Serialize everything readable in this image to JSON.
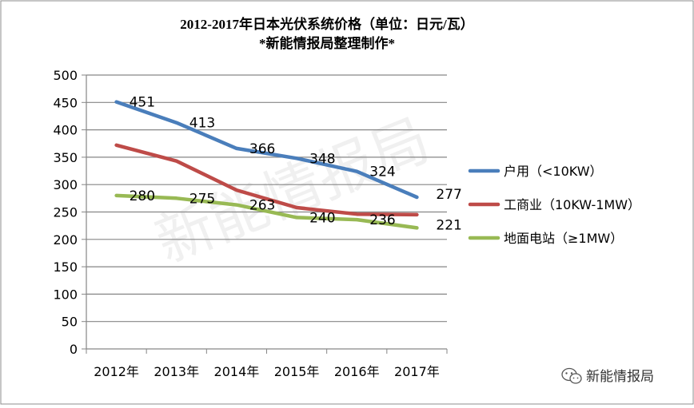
{
  "header": {
    "title": "2012-2017年日本光伏系统价格（单位：日元/瓦）",
    "subtitle": "*新能情报局整理制作*"
  },
  "watermark": "新能情报局",
  "footer": {
    "brand": "新能情报局",
    "brand_icon": "wechat-icon"
  },
  "colors": {
    "residential": "#4a7ebb",
    "commercial": "#be4b48",
    "ground": "#98b954",
    "grid": "#868686",
    "axis": "#868686"
  },
  "chart_data": {
    "type": "line",
    "title": "2012-2017年日本光伏系统价格（单位：日元/瓦）",
    "subtitle": "*新能情报局整理制作*",
    "categories": [
      "2012年",
      "2013年",
      "2014年",
      "2015年",
      "2016年",
      "2017年"
    ],
    "ylim": [
      0,
      500
    ],
    "yticks": [
      0,
      50,
      100,
      150,
      200,
      250,
      300,
      350,
      400,
      450,
      500
    ],
    "grid": true,
    "legend_position": "right",
    "series": [
      {
        "name": "户用（<10KW）",
        "key": "residential",
        "values": [
          451,
          413,
          366,
          348,
          324,
          277
        ],
        "labels": [
          "451",
          "413",
          "366",
          "348",
          "324",
          "277"
        ]
      },
      {
        "name": "工商业（10KW-1MW）",
        "key": "commercial",
        "values": [
          372,
          343,
          290,
          258,
          246,
          245
        ],
        "labels": []
      },
      {
        "name": "地面电站（≥1MW）",
        "key": "ground",
        "values": [
          280,
          275,
          263,
          240,
          236,
          221
        ],
        "labels": [
          "280",
          "275",
          "263",
          "240",
          "236",
          "221"
        ]
      }
    ]
  }
}
